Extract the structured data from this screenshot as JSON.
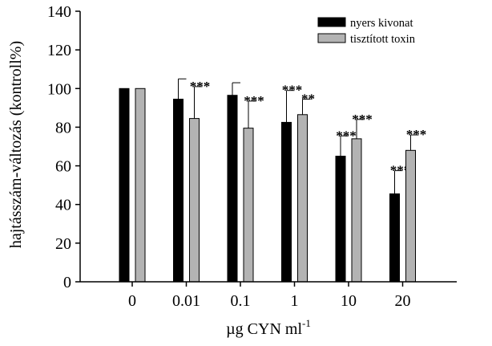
{
  "chart_data": {
    "type": "bar",
    "title": "",
    "xlabel": "µg CYN ml",
    "xlabel_superscript": "-1",
    "ylabel": "hajtásszám-változás (kontroll%)",
    "ylim": [
      0,
      140
    ],
    "yticks": [
      0,
      20,
      40,
      60,
      80,
      100,
      120,
      140
    ],
    "categories": [
      "0",
      "0.01",
      "0.1",
      "1",
      "10",
      "20"
    ],
    "legend_position": "top-right",
    "grid": false,
    "series": [
      {
        "name": "nyers kivonat",
        "color": "#000000",
        "values": [
          100,
          94.5,
          96.5,
          82.5,
          65,
          45.5
        ],
        "errors": [
          0,
          10.5,
          6.5,
          16.5,
          10.5,
          12
        ],
        "significance": [
          "",
          "",
          "",
          "***",
          "***",
          "***"
        ]
      },
      {
        "name": "tisztított toxin",
        "color": "#b3b3b3",
        "values": [
          100,
          84.5,
          79.5,
          86.5,
          74,
          68
        ],
        "errors": [
          0,
          16.5,
          14,
          8,
          10,
          8
        ],
        "significance": [
          "",
          "***",
          "***",
          "**",
          "***",
          "***"
        ]
      }
    ]
  }
}
